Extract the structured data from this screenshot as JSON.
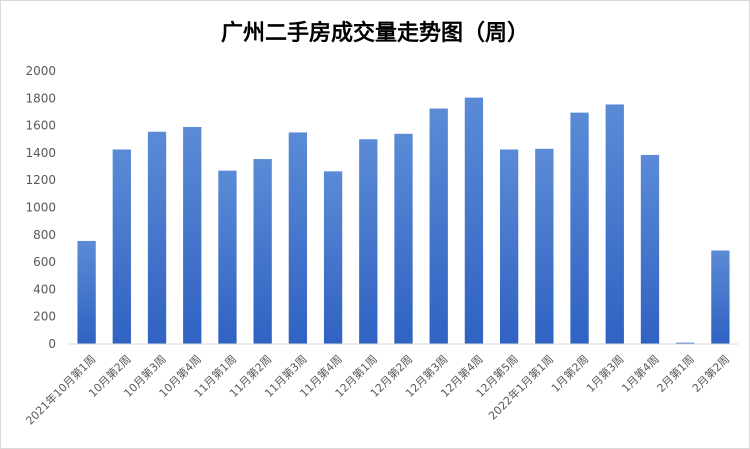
{
  "chart_data": {
    "type": "bar",
    "title": "广州二手房成交量走势图（周）",
    "xlabel": "",
    "ylabel": "",
    "ylim": [
      0,
      2000
    ],
    "yticks": [
      0,
      200,
      400,
      600,
      800,
      1000,
      1200,
      1400,
      1600,
      1800,
      2000
    ],
    "grid": false,
    "legend": "none",
    "bar_color_top": "#5b8bd6",
    "bar_color_bottom": "#2f62c2",
    "categories": [
      "2021年10月第1周",
      "10月第2周",
      "10月第3周",
      "10月第4周",
      "11月第1周",
      "11月第2周",
      "11月第3周",
      "11月第4周",
      "12月第1周",
      "12月第2周",
      "12月第3周",
      "12月第4周",
      "12月第5周",
      "2022年1月第1周",
      "1月第2周",
      "1月第3周",
      "1月第4周",
      "2月第1周",
      "2月第2周"
    ],
    "values": [
      755,
      1425,
      1555,
      1590,
      1270,
      1355,
      1550,
      1265,
      1500,
      1540,
      1725,
      1805,
      1425,
      1430,
      1695,
      1755,
      1385,
      10,
      685
    ]
  }
}
